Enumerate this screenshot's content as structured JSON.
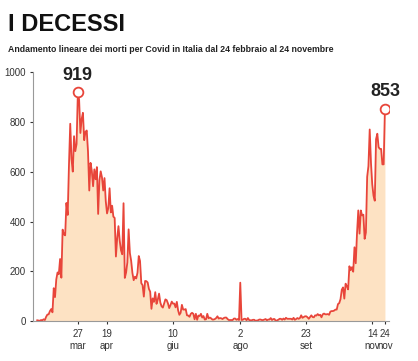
{
  "chart_data": {
    "type": "area",
    "title": "I DECESSI",
    "subtitle": "Andamento lineare dei morti per Covid in Italia dal 24 febbraio al 24 novembre",
    "categories": [
      null,
      null,
      null,
      null,
      null,
      null,
      null,
      null,
      null,
      null,
      null,
      null,
      null,
      null,
      null,
      null,
      null,
      null,
      null,
      null,
      null,
      null,
      null,
      null,
      null,
      null,
      null,
      null,
      null,
      null,
      null,
      null,
      "27\nmar",
      null,
      null,
      null,
      null,
      null,
      null,
      null,
      null,
      null,
      null,
      null,
      null,
      null,
      null,
      null,
      null,
      null,
      null,
      null,
      null,
      null,
      null,
      "19\napr",
      null,
      null,
      null,
      null,
      null,
      null,
      null,
      null,
      null,
      null,
      null,
      null,
      null,
      null,
      null,
      null,
      null,
      null,
      null,
      null,
      null,
      null,
      null,
      null,
      null,
      null,
      null,
      null,
      null,
      null,
      null,
      null,
      null,
      null,
      null,
      null,
      null,
      null,
      null,
      null,
      null,
      null,
      null,
      null,
      null,
      null,
      null,
      null,
      null,
      null,
      null,
      "10\ngiu",
      null,
      null,
      null,
      null,
      null,
      null,
      null,
      null,
      null,
      null,
      null,
      null,
      null,
      null,
      null,
      null,
      null,
      null,
      null,
      null,
      null,
      null,
      null,
      null,
      null,
      null,
      null,
      null,
      null,
      null,
      null,
      null,
      null,
      null,
      null,
      null,
      null,
      null,
      null,
      null,
      null,
      null,
      null,
      null,
      null,
      null,
      null,
      null,
      null,
      null,
      null,
      null,
      "2\nago",
      null,
      null,
      null,
      null,
      null,
      null,
      null,
      null,
      null,
      null,
      null,
      null,
      null,
      null,
      null,
      null,
      null,
      null,
      null,
      null,
      null,
      null,
      null,
      null,
      null,
      null,
      null,
      null,
      null,
      null,
      null,
      null,
      null,
      null,
      null,
      null,
      null,
      null,
      null,
      null,
      null,
      null,
      null,
      null,
      null,
      null,
      null,
      null,
      null,
      null,
      null,
      "23\nset",
      null,
      null,
      null,
      null,
      null,
      null,
      null,
      null,
      null,
      null,
      null,
      null,
      null,
      null,
      null,
      null,
      null,
      null,
      null,
      null,
      null,
      null,
      null,
      null,
      null,
      null,
      null,
      null,
      null,
      null,
      null,
      null,
      null,
      null,
      null,
      null,
      null,
      null,
      null,
      null,
      null,
      null,
      null,
      null,
      null,
      null,
      null,
      null,
      null,
      null,
      null,
      "14\nnov",
      null,
      null,
      null,
      null,
      null,
      null,
      null,
      null,
      null,
      "24\nnov"
    ],
    "values": [
      4,
      3,
      2,
      5,
      4,
      8,
      5,
      18,
      27,
      28,
      41,
      49,
      36,
      133,
      97,
      168,
      196,
      189,
      250,
      175,
      368,
      349,
      345,
      475,
      427,
      627,
      793,
      651,
      601,
      743,
      683,
      712,
      919,
      889,
      756,
      812,
      837,
      727,
      760,
      766,
      681,
      525,
      636,
      604,
      542,
      610,
      570,
      619,
      431,
      566,
      602,
      578,
      525,
      575,
      482,
      433,
      454,
      534,
      437,
      464,
      420,
      415,
      260,
      333,
      382,
      323,
      285,
      269,
      474,
      174,
      195,
      236,
      369,
      274,
      243,
      194,
      165,
      179,
      172,
      195,
      262,
      242,
      153,
      145,
      99,
      162,
      161,
      156,
      130,
      119,
      50,
      92,
      78,
      117,
      70,
      87,
      111,
      75,
      60,
      55,
      71,
      88,
      85,
      72,
      53,
      65,
      79,
      71,
      71,
      56,
      78,
      44,
      26,
      34,
      66,
      47,
      47,
      49,
      24,
      23,
      18,
      30,
      34,
      30,
      8,
      30,
      6,
      23,
      21,
      30,
      15,
      21,
      7,
      8,
      30,
      12,
      15,
      12,
      7,
      7,
      9,
      13,
      20,
      11,
      13,
      12,
      9,
      13,
      15,
      15,
      9,
      5,
      5,
      5,
      5,
      11,
      11,
      6,
      9,
      5,
      155,
      5,
      6,
      10,
      10,
      4,
      13,
      5,
      4,
      4,
      6,
      6,
      2,
      3,
      4,
      7,
      7,
      5,
      5,
      7,
      9,
      4,
      7,
      7,
      13,
      5,
      9,
      9,
      1,
      4,
      6,
      10,
      10,
      6,
      11,
      7,
      14,
      10,
      10,
      10,
      10,
      7,
      14,
      6,
      9,
      13,
      10,
      13,
      24,
      14,
      17,
      20,
      20,
      16,
      10,
      17,
      24,
      17,
      16,
      24,
      23,
      29,
      24,
      26,
      16,
      28,
      31,
      28,
      28,
      29,
      26,
      39,
      41,
      41,
      43,
      47,
      47,
      69,
      73,
      89,
      127,
      136,
      91,
      151,
      141,
      128,
      221,
      205,
      217,
      199,
      297,
      233,
      353,
      445,
      352,
      445,
      425,
      428,
      331,
      356,
      580,
      623,
      770,
      636,
      550,
      504,
      484,
      731,
      753,
      699,
      692,
      692,
      630,
      630,
      853
    ],
    "color": "#e8453a",
    "ylim": [
      0,
      1000
    ],
    "yticks": [
      0,
      200,
      400,
      600,
      800,
      1000
    ],
    "grid": false,
    "annotations": [
      {
        "text": "919",
        "value": 919
      },
      {
        "text": "853",
        "value": 853
      }
    ]
  }
}
